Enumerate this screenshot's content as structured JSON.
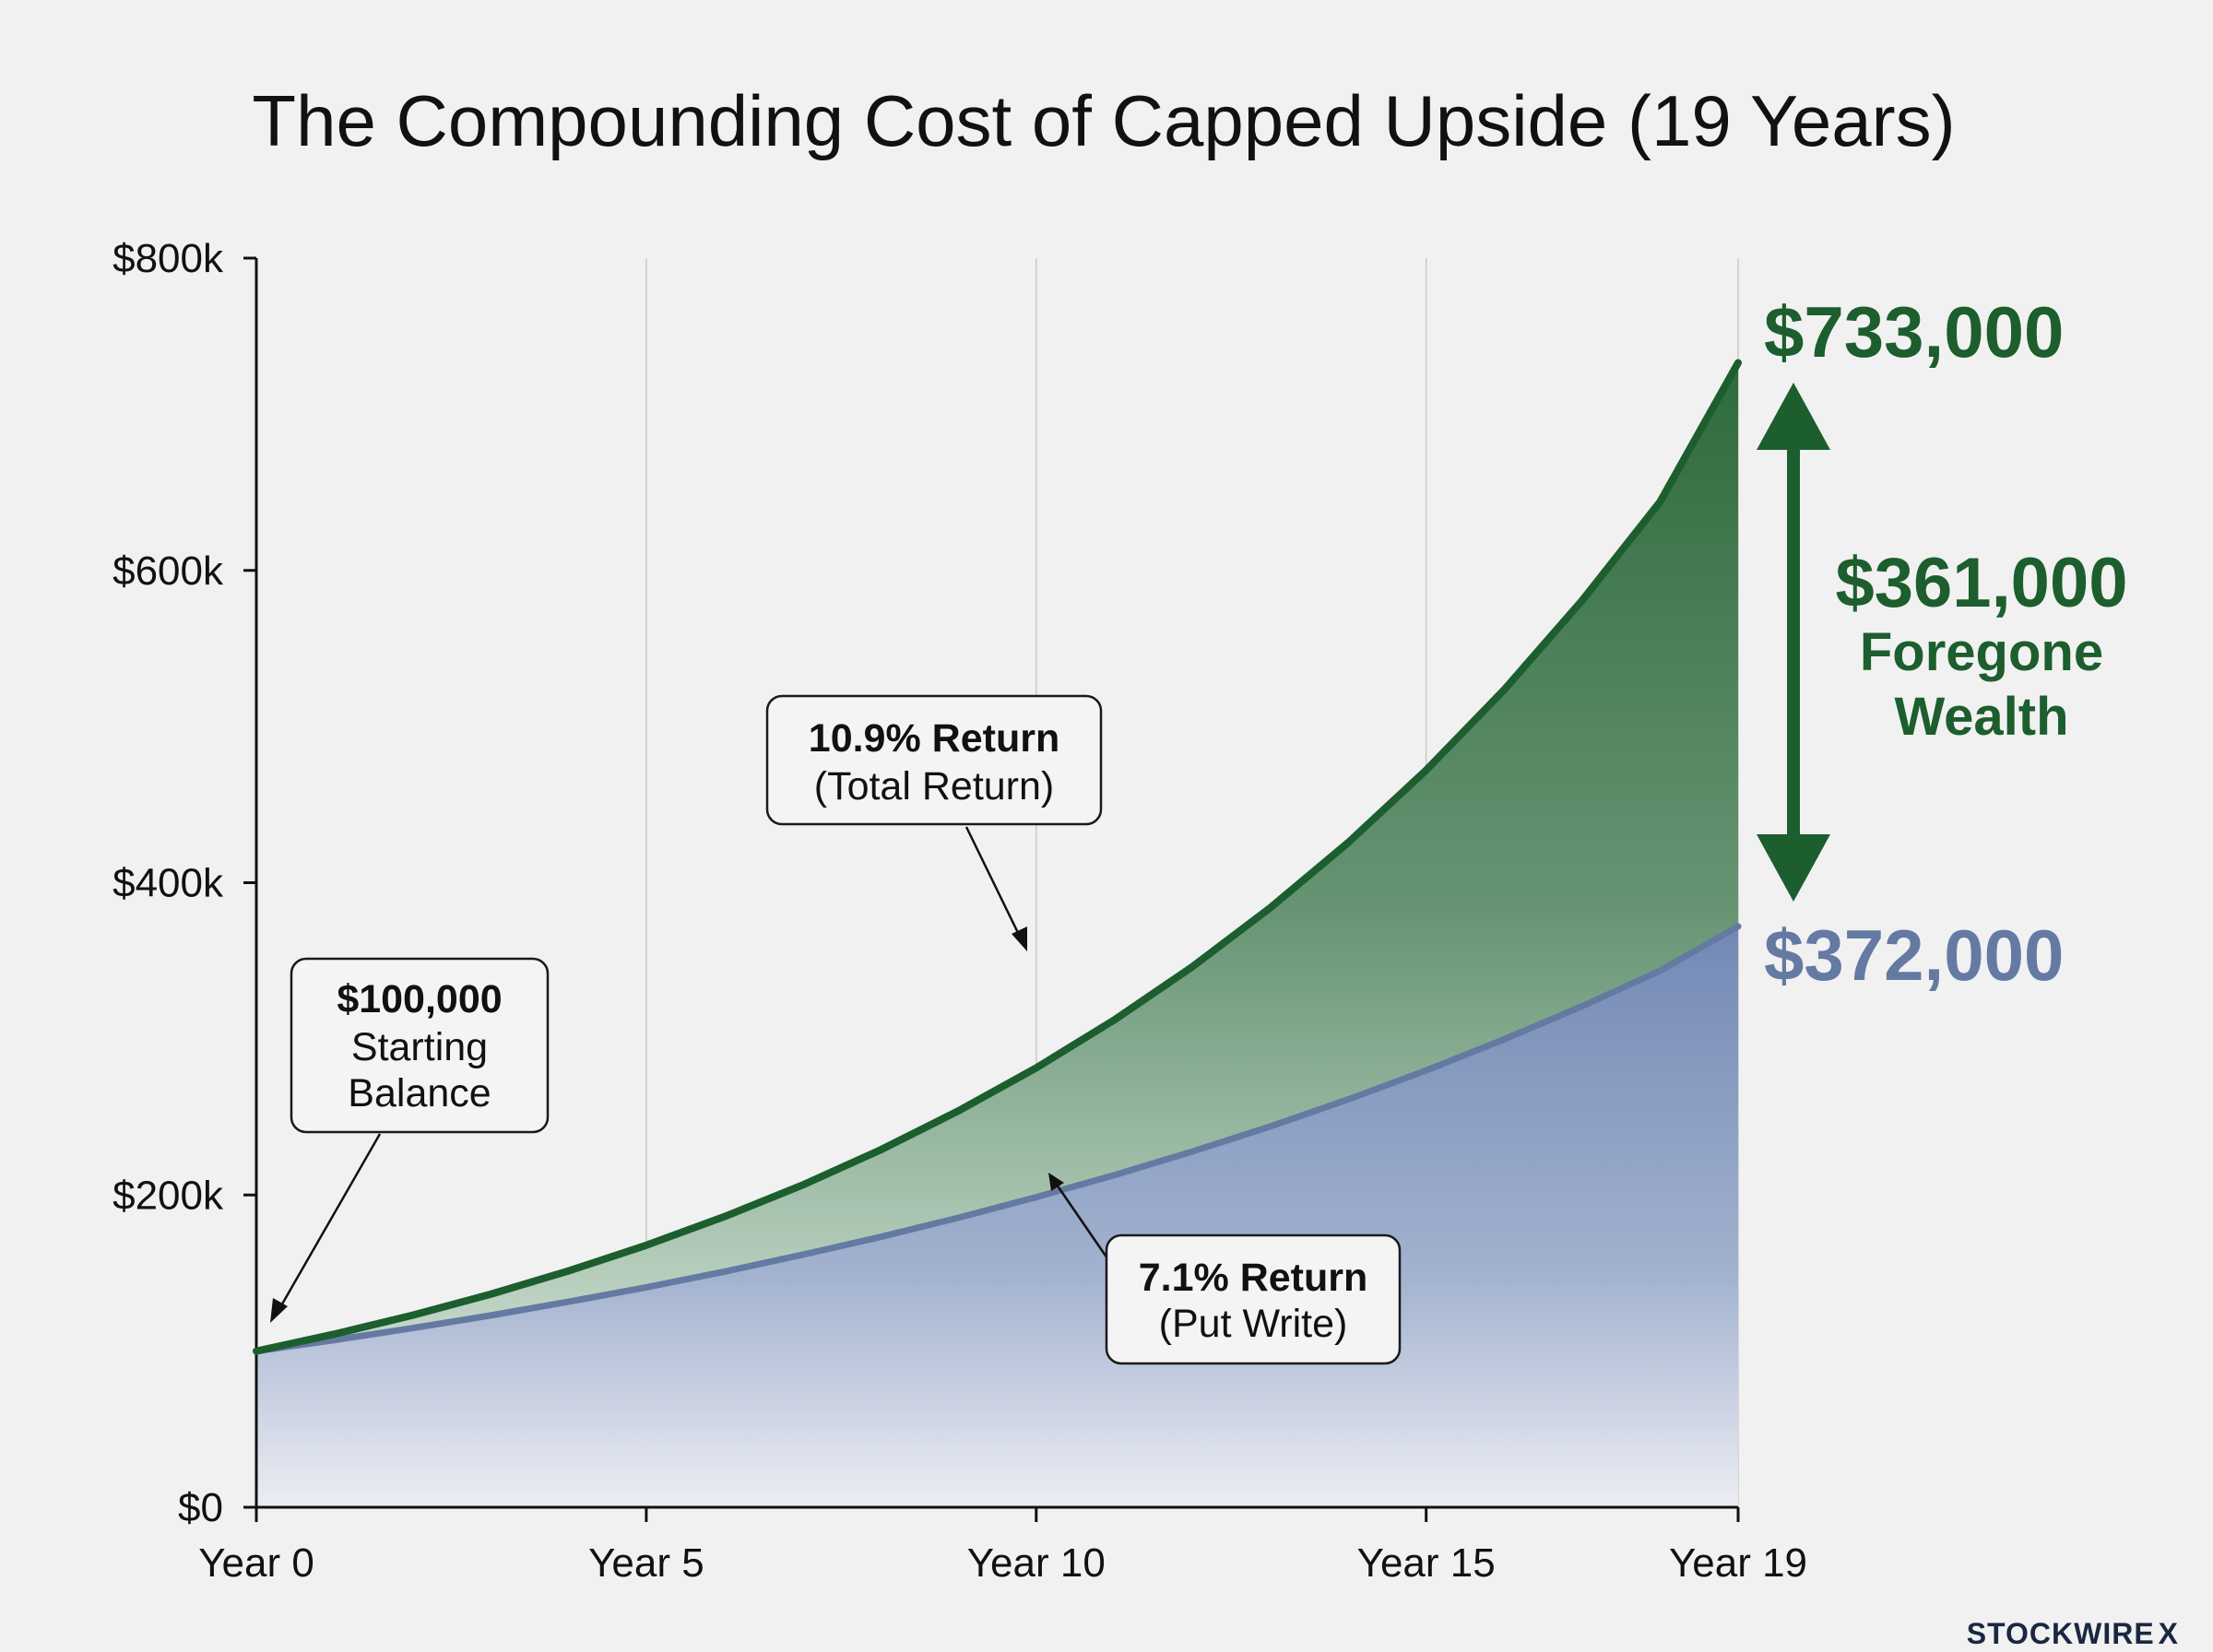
{
  "chart_data": {
    "type": "area",
    "title": "The Compounding Cost of Capped Upside (19 Years)",
    "x_tick_labels": [
      "Year 0",
      "Year 5",
      "Year 10",
      "Year 15",
      "Year 19"
    ],
    "x_ticks": [
      0,
      5,
      10,
      15,
      19
    ],
    "xlim": [
      0,
      19
    ],
    "y_tick_labels": [
      "$0",
      "$200k",
      "$400k",
      "$600k",
      "$800k"
    ],
    "y_ticks": [
      0,
      200000,
      400000,
      600000,
      800000
    ],
    "ylim": [
      0,
      800000
    ],
    "grid": "vertical",
    "series": [
      {
        "name": "10.9% Return (Total Return)",
        "color": "#1c5e2e",
        "x": [
          0,
          1,
          2,
          3,
          4,
          5,
          6,
          7,
          8,
          9,
          10,
          11,
          12,
          13,
          14,
          15,
          16,
          17,
          18,
          19
        ],
        "values": [
          100000,
          110900,
          123000,
          136400,
          151300,
          167800,
          186100,
          206300,
          228800,
          253800,
          281400,
          312100,
          346100,
          383900,
          425700,
          472100,
          523600,
          580700,
          644000,
          733000
        ]
      },
      {
        "name": "7.1% Return (Put Write)",
        "color": "#647aa3",
        "x": [
          0,
          1,
          2,
          3,
          4,
          5,
          6,
          7,
          8,
          9,
          10,
          11,
          12,
          13,
          14,
          15,
          16,
          17,
          18,
          19
        ],
        "values": [
          100000,
          107100,
          114700,
          122800,
          131600,
          140900,
          150900,
          161700,
          173100,
          185400,
          198600,
          212700,
          227800,
          243900,
          261200,
          279800,
          299700,
          320900,
          343700,
          372000
        ]
      }
    ],
    "annotations": [
      {
        "bold": "$100,000",
        "lines": [
          "Starting",
          "Balance"
        ]
      },
      {
        "bold": "10.9% Return",
        "lines": [
          "(Total Return)"
        ]
      },
      {
        "bold": "7.1% Return",
        "lines": [
          "(Put Write)"
        ]
      }
    ],
    "end_labels": {
      "upper": "$733,000",
      "lower": "$372,000"
    },
    "gap_label": {
      "value": "$361,000",
      "line1": "Foregone",
      "line2": "Wealth"
    }
  },
  "brand": {
    "name": "STOCKWIRE",
    "mark": "X"
  }
}
